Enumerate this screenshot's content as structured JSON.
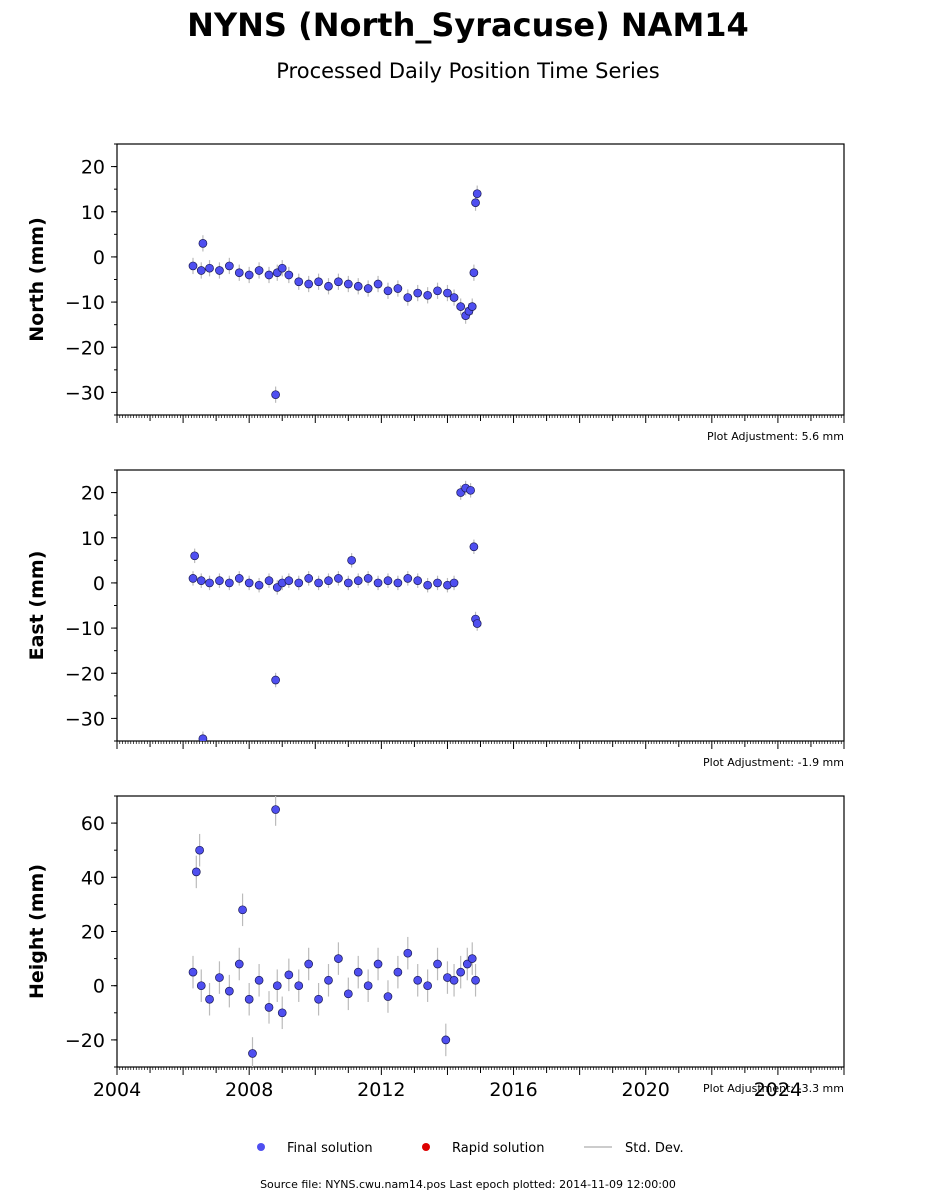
{
  "title": "NYNS (North_Syracuse) NAM14",
  "subtitle": "Processed Daily Position Time Series",
  "legend": {
    "final": "Final solution",
    "rapid": "Rapid solution",
    "stddev": "Std. Dev."
  },
  "source_note": "Source file: NYNS.cwu.nam14.pos  Last epoch plotted: 2014-11-09 12:00:00",
  "colors": {
    "final": "#4f4ff0",
    "rapid": "#dd0000",
    "stddev": "#bbbbbb"
  },
  "chart_data": [
    {
      "type": "scatter",
      "ylabel": "North (mm)",
      "xlim": [
        2004,
        2026
      ],
      "ylim": [
        -35,
        25
      ],
      "yticks": [
        20,
        10,
        0,
        -10,
        -20,
        -30
      ],
      "xticks": [
        2004,
        2008,
        2012,
        2016,
        2020,
        2024
      ],
      "show_xtick_labels": false,
      "adjustment": "Plot Adjustment: 5.6 mm",
      "series": [
        {
          "name": "Final solution",
          "x": [
            2006.3,
            2006.55,
            2006.8,
            2007.1,
            2007.4,
            2007.7,
            2008.0,
            2008.3,
            2008.6,
            2008.85,
            2009.0,
            2009.2,
            2009.5,
            2009.8,
            2010.1,
            2010.4,
            2010.7,
            2011.0,
            2011.3,
            2011.6,
            2011.9,
            2012.2,
            2012.5,
            2012.8,
            2013.1,
            2013.4,
            2013.7,
            2014.0,
            2014.2,
            2014.4,
            2014.55,
            2014.65,
            2014.75,
            2014.85,
            2014.9,
            2006.6,
            2008.8,
            2014.8
          ],
          "y": [
            -2,
            -3,
            -2.5,
            -3,
            -2,
            -3.5,
            -4,
            -3,
            -4,
            -3.5,
            -2.5,
            -4,
            -5.5,
            -6,
            -5.5,
            -6.5,
            -5.5,
            -6,
            -6.5,
            -7,
            -6,
            -7.5,
            -7,
            -9,
            -8,
            -8.5,
            -7.5,
            -8,
            -9,
            -11,
            -13,
            -12,
            -11,
            12,
            14,
            3,
            -30.5,
            -3.5
          ],
          "std_dev": [
            1.8,
            1.8,
            1.8,
            1.8,
            1.8,
            1.8,
            1.8,
            1.8,
            1.8,
            1.8,
            1.8,
            1.8,
            1.8,
            1.8,
            1.8,
            1.8,
            1.8,
            1.8,
            1.8,
            1.8,
            1.8,
            1.8,
            1.8,
            1.8,
            1.8,
            1.8,
            1.8,
            1.8,
            1.8,
            1.8,
            1.8,
            1.8,
            1.8,
            1.8,
            1.8,
            1.8,
            1.8,
            1.8
          ]
        }
      ]
    },
    {
      "type": "scatter",
      "ylabel": "East (mm)",
      "xlim": [
        2004,
        2026
      ],
      "ylim": [
        -35,
        25
      ],
      "yticks": [
        20,
        10,
        0,
        -10,
        -20,
        -30
      ],
      "xticks": [
        2004,
        2008,
        2012,
        2016,
        2020,
        2024
      ],
      "show_xtick_labels": false,
      "adjustment": "Plot Adjustment: -1.9 mm",
      "series": [
        {
          "name": "Final solution",
          "x": [
            2006.3,
            2006.55,
            2006.8,
            2007.1,
            2007.4,
            2007.7,
            2008.0,
            2008.3,
            2008.6,
            2008.85,
            2009.0,
            2009.2,
            2009.5,
            2009.8,
            2010.1,
            2010.4,
            2010.7,
            2011.0,
            2011.3,
            2011.6,
            2011.9,
            2012.2,
            2012.5,
            2012.8,
            2013.1,
            2013.4,
            2013.7,
            2014.0,
            2014.2,
            2014.4,
            2014.55,
            2014.7,
            2014.8,
            2014.85,
            2014.9,
            2006.35,
            2006.6,
            2008.8,
            2011.1
          ],
          "y": [
            1,
            0.5,
            0,
            0.5,
            0,
            1,
            0,
            -0.5,
            0.5,
            -1,
            0,
            0.5,
            0,
            1,
            0,
            0.5,
            1,
            0,
            0.5,
            1,
            0,
            0.5,
            0,
            1,
            0.5,
            -0.5,
            0,
            -0.5,
            0,
            20,
            21,
            20.5,
            8,
            -8,
            -9,
            6,
            -34.5,
            -21.5,
            5
          ],
          "std_dev": [
            1.6,
            1.6,
            1.6,
            1.6,
            1.6,
            1.6,
            1.6,
            1.6,
            1.6,
            1.6,
            1.6,
            1.6,
            1.6,
            1.6,
            1.6,
            1.6,
            1.6,
            1.6,
            1.6,
            1.6,
            1.6,
            1.6,
            1.6,
            1.6,
            1.6,
            1.6,
            1.6,
            1.6,
            1.6,
            1.6,
            1.6,
            1.6,
            1.6,
            1.6,
            1.6,
            1.6,
            1.6,
            1.6,
            1.6
          ]
        }
      ]
    },
    {
      "type": "scatter",
      "ylabel": "Height (mm)",
      "xlim": [
        2004,
        2026
      ],
      "ylim": [
        -30,
        70
      ],
      "yticks": [
        60,
        40,
        20,
        0,
        -20
      ],
      "xticks": [
        2004,
        2008,
        2012,
        2016,
        2020,
        2024
      ],
      "xticklabels": [
        "2004",
        "2008",
        "2012",
        "2016",
        "2020",
        "2024"
      ],
      "show_xtick_labels": true,
      "adjustment": "Plot Adjustment: -3.3 mm",
      "series": [
        {
          "name": "Final solution",
          "x": [
            2006.3,
            2006.55,
            2006.8,
            2007.1,
            2007.4,
            2007.7,
            2008.0,
            2008.3,
            2008.6,
            2008.85,
            2009.0,
            2009.2,
            2009.5,
            2009.8,
            2010.1,
            2010.4,
            2010.7,
            2011.0,
            2011.3,
            2011.6,
            2011.9,
            2012.2,
            2012.5,
            2012.8,
            2013.1,
            2013.4,
            2013.7,
            2014.0,
            2014.2,
            2014.4,
            2014.6,
            2014.75,
            2014.85,
            2006.4,
            2006.5,
            2008.8,
            2007.8,
            2008.1,
            2013.95
          ],
          "y": [
            5,
            0,
            -5,
            3,
            -2,
            8,
            -5,
            2,
            -8,
            0,
            -10,
            4,
            0,
            8,
            -5,
            2,
            10,
            -3,
            5,
            0,
            8,
            -4,
            5,
            12,
            2,
            0,
            8,
            3,
            2,
            5,
            8,
            10,
            2,
            42,
            50,
            65,
            28,
            -25,
            -20
          ],
          "std_dev": [
            6,
            6,
            6,
            6,
            6,
            6,
            6,
            6,
            6,
            6,
            6,
            6,
            6,
            6,
            6,
            6,
            6,
            6,
            6,
            6,
            6,
            6,
            6,
            6,
            6,
            6,
            6,
            6,
            6,
            6,
            6,
            6,
            6,
            6,
            6,
            6,
            6,
            6,
            6
          ]
        }
      ]
    }
  ]
}
